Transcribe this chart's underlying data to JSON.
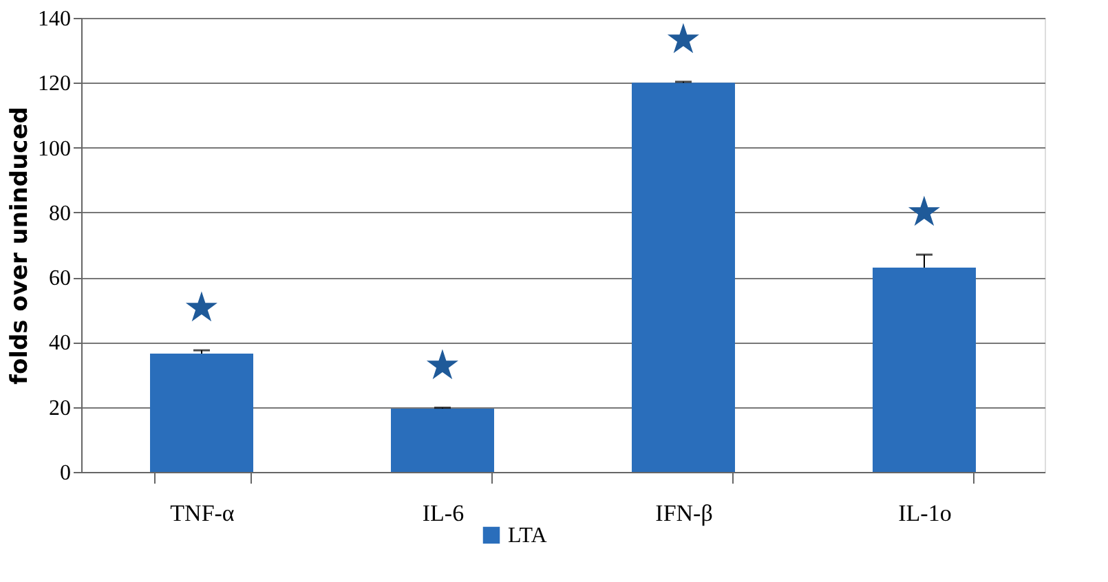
{
  "chart_data": {
    "type": "bar",
    "ylabel": "folds over uninduced",
    "categories": [
      "TNF-α",
      "IL-6",
      "IFN-β",
      "IL-1o"
    ],
    "series": [
      {
        "name": "LTA",
        "color": "#2a6ebb",
        "values": [
          36.5,
          19.5,
          120,
          63
        ],
        "errors": [
          1,
          0.3,
          0.3,
          4
        ]
      }
    ],
    "ylim": [
      0,
      140
    ],
    "yticks": [
      0,
      20,
      40,
      60,
      80,
      100,
      120,
      140
    ],
    "grid": "y",
    "legend": "bottom",
    "annotations": [
      "★",
      "★",
      "★",
      "★"
    ]
  }
}
